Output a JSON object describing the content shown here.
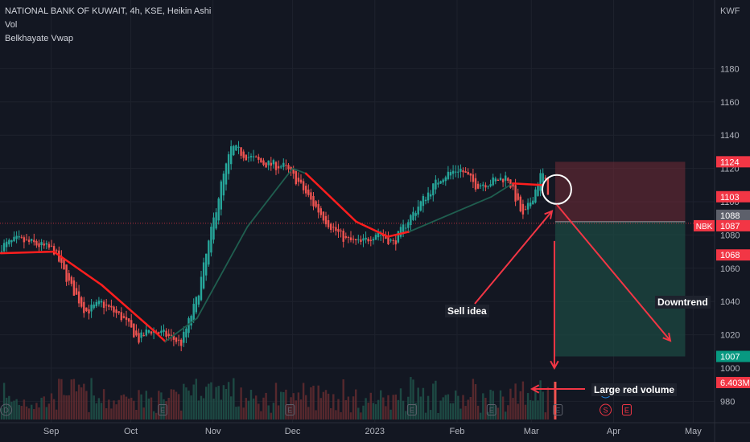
{
  "header": {
    "title": "NATIONAL BANK OF KUWAIT, 4h, KSE, Heikin Ashi",
    "indicator1": "Vol",
    "indicator2": "Belkhayate Vwap"
  },
  "currency": "KWF",
  "annotations": {
    "sell_idea": "Sell idea",
    "downtrend": "Downtrend",
    "large_red_volume": "Large red volume"
  },
  "price_tags": [
    {
      "label": "1124",
      "color": "#f23645"
    },
    {
      "label": "1103",
      "color": "#f23645"
    },
    {
      "label": "1088",
      "color": "#5d606b"
    },
    {
      "label": "1087",
      "color": "#f23645"
    },
    {
      "label": "1068",
      "color": "#f23645"
    },
    {
      "label": "1007",
      "color": "#089981"
    },
    {
      "label": "6.403M",
      "color": "#f23645"
    }
  ],
  "symbol_tag": "NBK",
  "event_badges": [
    "D",
    "E",
    "E",
    "E",
    "E",
    "E",
    "D",
    "S",
    "E"
  ],
  "colors": {
    "up": "#26a69a",
    "down": "#ef5350",
    "vwap_red": "#ff1e1e",
    "vwap_green": "#1f5e4f",
    "loss_zone": "#6b2a36",
    "profit_zone": "#1c4841",
    "arrow": "#f23645"
  },
  "chart_data": {
    "type": "candlestick",
    "title": "NATIONAL BANK OF KUWAIT, 4h, KSE, Heikin Ashi",
    "y_axis": {
      "unit": "KWF",
      "ticks": [
        980,
        1000,
        1020,
        1040,
        1060,
        1080,
        1100,
        1120,
        1140,
        1160,
        1180
      ],
      "range": [
        972,
        1194
      ]
    },
    "x_axis": {
      "ticks": [
        "Sep",
        "Oct",
        "Nov",
        "Dec",
        "2023",
        "Feb",
        "Mar",
        "Apr",
        "May"
      ]
    },
    "price_path": [
      {
        "date": "2022-08-13",
        "close": 1073
      },
      {
        "date": "2022-08-19",
        "close": 1077
      },
      {
        "date": "2022-08-25",
        "close": 1075
      },
      {
        "date": "2022-09-02",
        "close": 1071
      },
      {
        "date": "2022-09-08",
        "close": 1050
      },
      {
        "date": "2022-09-14",
        "close": 1034
      },
      {
        "date": "2022-09-20",
        "close": 1039
      },
      {
        "date": "2022-09-28",
        "close": 1030
      },
      {
        "date": "2022-10-04",
        "close": 1017
      },
      {
        "date": "2022-10-08",
        "close": 1023
      },
      {
        "date": "2022-10-14",
        "close": 1020
      },
      {
        "date": "2022-10-20",
        "close": 1015
      },
      {
        "date": "2022-10-26",
        "close": 1042
      },
      {
        "date": "2022-10-31",
        "close": 1080
      },
      {
        "date": "2022-11-04",
        "close": 1110
      },
      {
        "date": "2022-11-08",
        "close": 1133
      },
      {
        "date": "2022-11-13",
        "close": 1128
      },
      {
        "date": "2022-11-20",
        "close": 1123
      },
      {
        "date": "2022-11-28",
        "close": 1121
      },
      {
        "date": "2022-12-03",
        "close": 1112
      },
      {
        "date": "2022-12-09",
        "close": 1098
      },
      {
        "date": "2022-12-15",
        "close": 1086
      },
      {
        "date": "2022-12-21",
        "close": 1077
      },
      {
        "date": "2022-12-27",
        "close": 1075
      },
      {
        "date": "2023-01-02",
        "close": 1082
      },
      {
        "date": "2023-01-08",
        "close": 1075
      },
      {
        "date": "2023-01-14",
        "close": 1090
      },
      {
        "date": "2023-01-20",
        "close": 1103
      },
      {
        "date": "2023-01-26",
        "close": 1115
      },
      {
        "date": "2023-02-02",
        "close": 1120
      },
      {
        "date": "2023-02-08",
        "close": 1110
      },
      {
        "date": "2023-02-14",
        "close": 1112
      },
      {
        "date": "2023-02-20",
        "close": 1115
      },
      {
        "date": "2023-02-26",
        "close": 1090
      },
      {
        "date": "2023-03-02",
        "close": 1105
      },
      {
        "date": "2023-03-05",
        "close": 1118
      },
      {
        "date": "2023-03-08",
        "close": 1103
      }
    ],
    "vwap": [
      {
        "date": "2022-08-13",
        "value": 1069,
        "trend": "down"
      },
      {
        "date": "2022-09-02",
        "value": 1070,
        "trend": "down"
      },
      {
        "date": "2022-09-20",
        "value": 1050,
        "trend": "down"
      },
      {
        "date": "2022-10-10",
        "value": 1022,
        "trend": "down"
      },
      {
        "date": "2022-10-14",
        "value": 1016,
        "trend": "up"
      },
      {
        "date": "2022-10-26",
        "value": 1030,
        "trend": "up"
      },
      {
        "date": "2022-11-14",
        "value": 1085,
        "trend": "up"
      },
      {
        "date": "2022-12-01",
        "value": 1120,
        "trend": "up"
      },
      {
        "date": "2022-12-06",
        "value": 1117,
        "trend": "down"
      },
      {
        "date": "2022-12-25",
        "value": 1088,
        "trend": "down"
      },
      {
        "date": "2023-01-06",
        "value": 1079,
        "trend": "down"
      },
      {
        "date": "2023-01-14",
        "value": 1082,
        "trend": "up"
      },
      {
        "date": "2023-02-14",
        "value": 1103,
        "trend": "up"
      },
      {
        "date": "2023-02-22",
        "value": 1111,
        "trend": "down"
      },
      {
        "date": "2023-03-05",
        "value": 1110,
        "trend": "down"
      }
    ],
    "trade_setup": {
      "direction": "short",
      "entry": 1088,
      "stop": 1124,
      "target": 1007,
      "start": "2023-03-10",
      "end": "2023-04-28"
    },
    "price_lines": {
      "last_price": 1087,
      "marker_price": 1103,
      "low_marker": 1068
    },
    "volume": {
      "last": "6.403M",
      "last_color": "red"
    }
  }
}
